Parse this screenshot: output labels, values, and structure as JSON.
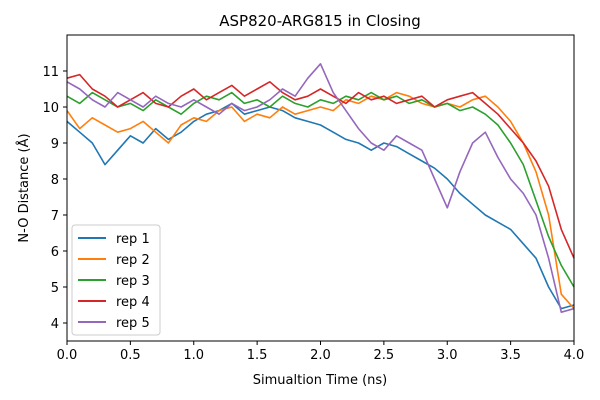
{
  "chart_data": {
    "type": "line",
    "title": "ASP820-ARG815 in Closing",
    "xlabel": "Simualtion Time (ns)",
    "ylabel": "N-O Distance (Å)",
    "xlim": [
      0,
      4.0
    ],
    "ylim": [
      3.5,
      12.0
    ],
    "xticks": [
      "0.0",
      "0.5",
      "1.0",
      "1.5",
      "2.0",
      "2.5",
      "3.0",
      "3.5",
      "4.0"
    ],
    "yticks": [
      "4",
      "5",
      "6",
      "7",
      "8",
      "9",
      "10",
      "11"
    ],
    "grid": false,
    "legend_position": "lower-left",
    "x": [
      0,
      0.1,
      0.2,
      0.3,
      0.4,
      0.5,
      0.6,
      0.7,
      0.8,
      0.9,
      1.0,
      1.1,
      1.2,
      1.3,
      1.4,
      1.5,
      1.6,
      1.7,
      1.8,
      1.9,
      2.0,
      2.1,
      2.2,
      2.3,
      2.4,
      2.5,
      2.6,
      2.7,
      2.8,
      2.9,
      3.0,
      3.1,
      3.2,
      3.3,
      3.4,
      3.5,
      3.6,
      3.7,
      3.8,
      3.9,
      4.0
    ],
    "series": [
      {
        "name": "rep 1",
        "color": "#1f77b4",
        "values": [
          9.6,
          9.3,
          9.0,
          8.4,
          8.8,
          9.2,
          9.0,
          9.4,
          9.1,
          9.3,
          9.6,
          9.8,
          9.9,
          10.1,
          9.8,
          9.9,
          10.0,
          9.9,
          9.7,
          9.6,
          9.5,
          9.3,
          9.1,
          9.0,
          8.8,
          9.0,
          8.9,
          8.7,
          8.5,
          8.3,
          8.0,
          7.6,
          7.3,
          7.0,
          6.8,
          6.6,
          6.2,
          5.8,
          5.0,
          4.4,
          4.5
        ]
      },
      {
        "name": "rep 2",
        "color": "#ff7f0e",
        "values": [
          9.9,
          9.4,
          9.7,
          9.5,
          9.3,
          9.4,
          9.6,
          9.3,
          9.0,
          9.5,
          9.7,
          9.6,
          9.9,
          10.0,
          9.6,
          9.8,
          9.7,
          10.0,
          9.8,
          9.9,
          10.0,
          9.9,
          10.2,
          10.1,
          10.3,
          10.2,
          10.4,
          10.3,
          10.1,
          10.0,
          10.1,
          10.0,
          10.2,
          10.3,
          10.0,
          9.6,
          9.0,
          8.2,
          7.0,
          4.8,
          4.4
        ]
      },
      {
        "name": "rep 3",
        "color": "#2ca02c",
        "values": [
          10.3,
          10.1,
          10.4,
          10.2,
          10.0,
          10.1,
          9.9,
          10.2,
          10.0,
          9.8,
          10.1,
          10.3,
          10.2,
          10.4,
          10.1,
          10.2,
          10.0,
          10.3,
          10.1,
          10.0,
          10.2,
          10.1,
          10.3,
          10.2,
          10.4,
          10.2,
          10.3,
          10.1,
          10.2,
          10.0,
          10.1,
          9.9,
          10.0,
          9.8,
          9.5,
          9.0,
          8.4,
          7.4,
          6.4,
          5.6,
          5.0
        ]
      },
      {
        "name": "rep 4",
        "color": "#d62728",
        "values": [
          10.8,
          10.9,
          10.5,
          10.3,
          10.0,
          10.2,
          10.4,
          10.1,
          10.0,
          10.3,
          10.5,
          10.2,
          10.4,
          10.6,
          10.3,
          10.5,
          10.7,
          10.4,
          10.2,
          10.3,
          10.5,
          10.3,
          10.1,
          10.4,
          10.2,
          10.3,
          10.1,
          10.2,
          10.3,
          10.0,
          10.2,
          10.3,
          10.4,
          10.1,
          9.8,
          9.4,
          9.0,
          8.5,
          7.8,
          6.6,
          5.8
        ]
      },
      {
        "name": "rep 5",
        "color": "#9467bd",
        "values": [
          10.7,
          10.5,
          10.2,
          10.0,
          10.4,
          10.2,
          10.0,
          10.3,
          10.1,
          10.0,
          10.2,
          10.0,
          9.8,
          10.1,
          9.9,
          10.0,
          10.2,
          10.5,
          10.3,
          10.8,
          11.2,
          10.4,
          9.9,
          9.4,
          9.0,
          8.8,
          9.2,
          9.0,
          8.8,
          8.0,
          7.2,
          8.2,
          9.0,
          9.3,
          8.6,
          8.0,
          7.6,
          7.0,
          5.8,
          4.3,
          4.4
        ]
      }
    ]
  }
}
